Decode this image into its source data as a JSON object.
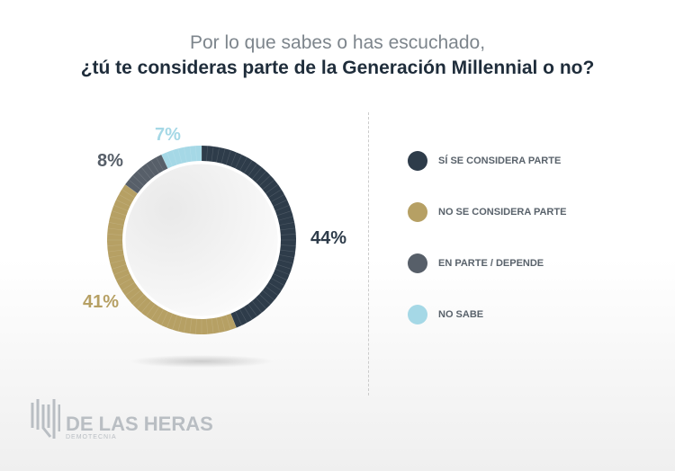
{
  "title": {
    "line1": "Por lo que sabes o has escuchado,",
    "line2": "¿tú te consideras parte de la Generación Millennial o no?"
  },
  "chart_data": {
    "type": "pie",
    "donut": true,
    "title": "¿tú te consideras parte de la Generación Millennial o no?",
    "categories": [
      "SÍ SE CONSIDERA PARTE",
      "NO SE CONSIDERA PARTE",
      "EN PARTE / DEPENDE",
      "NO SABE"
    ],
    "values": [
      44,
      41,
      8,
      7
    ],
    "labels": [
      "44%",
      "41%",
      "8%",
      "7%"
    ],
    "colors": [
      "#2e3c4a",
      "#b6a064",
      "#575f69",
      "#a5d8e6"
    ],
    "legend_position": "right"
  },
  "logo": {
    "name": "DE LAS HERAS",
    "sub": "DEMOTECNIA"
  }
}
